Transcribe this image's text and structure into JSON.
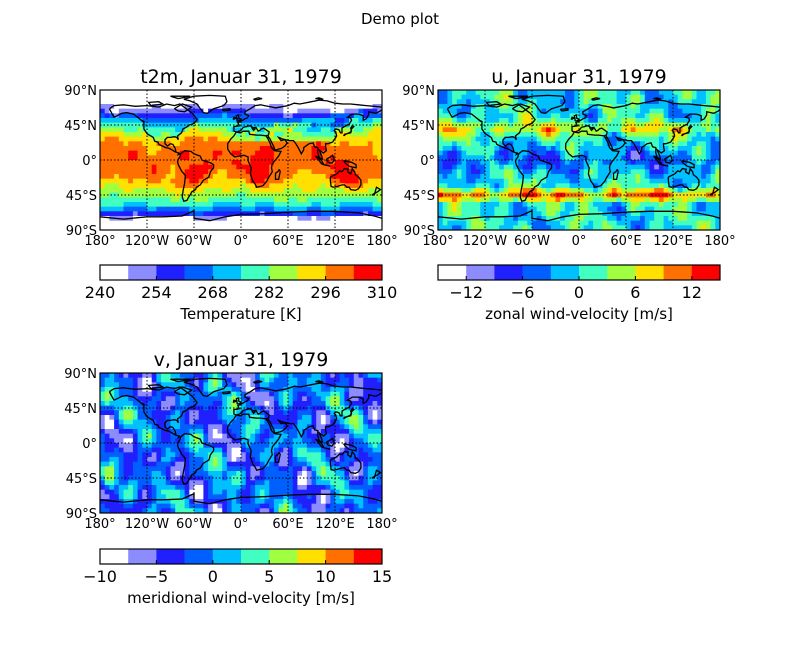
{
  "figure_title": "Demo plot",
  "colors": {
    "levels": [
      "#ffffff",
      "#8c8cff",
      "#2020ff",
      "#0060ff",
      "#00c0ff",
      "#40ffc0",
      "#a0ff40",
      "#ffe000",
      "#ff7000",
      "#ff0000"
    ],
    "coast": "#000000",
    "grid": "#000000"
  },
  "chart_data": [
    {
      "type": "heatmap",
      "title": "t2m, Januar 31, 1979",
      "lat_ticks": [
        "90°N",
        "45°N",
        "0°",
        "45°S",
        "90°S"
      ],
      "lon_ticks": [
        "180°",
        "120°W",
        "60°W",
        "0°",
        "60°E",
        "120°E",
        "180°"
      ],
      "grid": true,
      "colorbar": {
        "label": "Temperature [K]",
        "range": [
          240,
          310
        ],
        "ticks": [
          "240",
          "254",
          "268",
          "282",
          "296",
          "310"
        ],
        "tick_values": [
          240,
          254,
          268,
          282,
          296,
          310
        ]
      },
      "field": "t2m"
    },
    {
      "type": "heatmap",
      "title": "u, Januar 31, 1979",
      "lat_ticks": [
        "90°N",
        "45°N",
        "0°",
        "45°S",
        "90°S"
      ],
      "lon_ticks": [
        "180°",
        "120°W",
        "60°W",
        "0°",
        "60°E",
        "120°E",
        "180°"
      ],
      "grid": true,
      "colorbar": {
        "label": "zonal wind-velocity [m/s]",
        "range": [
          -15,
          15
        ],
        "ticks": [
          "−12",
          "−6",
          "0",
          "6",
          "12"
        ],
        "tick_values": [
          -12,
          -6,
          0,
          6,
          12
        ]
      },
      "field": "u"
    },
    {
      "type": "heatmap",
      "title": "v, Januar 31, 1979",
      "lat_ticks": [
        "90°N",
        "45°N",
        "0°",
        "45°S",
        "90°S"
      ],
      "lon_ticks": [
        "180°",
        "120°W",
        "60°W",
        "0°",
        "60°E",
        "120°E",
        "180°"
      ],
      "grid": true,
      "colorbar": {
        "label": "meridional wind-velocity [m/s]",
        "range": [
          -10,
          15
        ],
        "ticks": [
          "−10",
          "−5",
          "0",
          "5",
          "10",
          "15"
        ],
        "tick_values": [
          -10,
          -5,
          0,
          5,
          10,
          15
        ]
      },
      "field": "v"
    }
  ]
}
